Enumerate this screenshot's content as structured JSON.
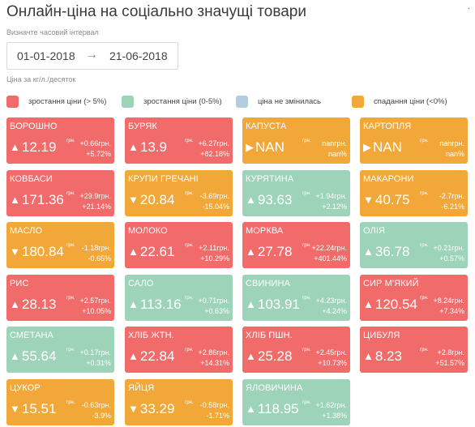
{
  "header": {
    "title": "Онлайн-ціна на соціально значущі товари",
    "corner": "."
  },
  "range": {
    "label": "Визначте часовий інтервал",
    "start": "01-01-2018",
    "arrow": "→",
    "end": "21-06-2018",
    "unit_note": "Ціна за кг/л./десяток"
  },
  "colors": {
    "up_strong": "#f26b6b",
    "up_mild": "#9dd3b8",
    "unchanged": "#b3cde0",
    "down": "#f2a838"
  },
  "legend": [
    {
      "label": "зростання ціни (> 5%)",
      "color": "#f26b6b"
    },
    {
      "label": "зростання ціни (0-5%)",
      "color": "#9dd3b8"
    },
    {
      "label": "ціна не змінилась",
      "color": "#b3cde0"
    },
    {
      "label": "спадання ціни (<0%)",
      "color": "#f2a838"
    }
  ],
  "products": [
    {
      "name": "БОРОШНО",
      "arrow": "▲",
      "price": "12.19",
      "cur": "грн.",
      "change": "+0.66грн.",
      "percent": "+5.72%",
      "color": "#f26b6b"
    },
    {
      "name": "БУРЯК",
      "arrow": "▲",
      "price": "13.9",
      "cur": "грн.",
      "change": "+6.27грн.",
      "percent": "+82.18%",
      "color": "#f26b6b"
    },
    {
      "name": "КАПУСТА",
      "arrow": "▶",
      "price": "NAN",
      "cur": "грн.",
      "change": "nanгрн.",
      "percent": "nan%",
      "color": "#f2a838"
    },
    {
      "name": "КАРТОПЛЯ",
      "arrow": "▶",
      "price": "NAN",
      "cur": "грн.",
      "change": "nanгрн.",
      "percent": "nan%",
      "color": "#f2a838"
    },
    {
      "name": "КОВБАСИ",
      "arrow": "▲",
      "price": "171.36",
      "cur": "грн.",
      "change": "+29.9грн.",
      "percent": "+21.14%",
      "color": "#f26b6b"
    },
    {
      "name": "КРУПИ ГРЕЧАНІ",
      "arrow": "▼",
      "price": "20.84",
      "cur": "грн.",
      "change": "-3.69грн.",
      "percent": "-15.04%",
      "color": "#f2a838"
    },
    {
      "name": "КУРЯТИНА",
      "arrow": "▲",
      "price": "93.63",
      "cur": "грн.",
      "change": "+1.94грн.",
      "percent": "+2.12%",
      "color": "#9dd3b8"
    },
    {
      "name": "МАКАРОНИ",
      "arrow": "▼",
      "price": "40.75",
      "cur": "грн.",
      "change": "-2.7грн.",
      "percent": "-6.21%",
      "color": "#f2a838"
    },
    {
      "name": "МАСЛО",
      "arrow": "▼",
      "price": "180.84",
      "cur": "грн.",
      "change": "-1.18грн.",
      "percent": "-0.65%",
      "color": "#f2a838"
    },
    {
      "name": "МОЛОКО",
      "arrow": "▲",
      "price": "22.61",
      "cur": "грн.",
      "change": "+2.11грн.",
      "percent": "+10.29%",
      "color": "#f26b6b"
    },
    {
      "name": "МОРКВА",
      "arrow": "▲",
      "price": "27.78",
      "cur": "грн.",
      "change": "+22.24грн.",
      "percent": "+401.44%",
      "color": "#f26b6b"
    },
    {
      "name": "ОЛІЯ",
      "arrow": "▲",
      "price": "36.78",
      "cur": "грн.",
      "change": "+0.21грн.",
      "percent": "+0.57%",
      "color": "#9dd3b8"
    },
    {
      "name": "РИС",
      "arrow": "▲",
      "price": "28.13",
      "cur": "грн.",
      "change": "+2.57грн.",
      "percent": "+10.05%",
      "color": "#f26b6b"
    },
    {
      "name": "САЛО",
      "arrow": "▲",
      "price": "113.16",
      "cur": "грн.",
      "change": "+0.71грн.",
      "percent": "+0.63%",
      "color": "#9dd3b8"
    },
    {
      "name": "СВИНИНА",
      "arrow": "▲",
      "price": "103.91",
      "cur": "грн.",
      "change": "+4.23грн.",
      "percent": "+4.24%",
      "color": "#9dd3b8"
    },
    {
      "name": "СИР М'ЯКИЙ",
      "arrow": "▲",
      "price": "120.54",
      "cur": "грн.",
      "change": "+8.24грн.",
      "percent": "+7.34%",
      "color": "#f26b6b"
    },
    {
      "name": "СМЕТАНА",
      "arrow": "▲",
      "price": "55.64",
      "cur": "грн.",
      "change": "+0.17грн.",
      "percent": "+0.31%",
      "color": "#9dd3b8"
    },
    {
      "name": "ХЛІБ ЖТН.",
      "arrow": "▲",
      "price": "22.84",
      "cur": "грн.",
      "change": "+2.86грн.",
      "percent": "+14.31%",
      "color": "#f26b6b"
    },
    {
      "name": "ХЛІБ ПШН.",
      "arrow": "▲",
      "price": "25.28",
      "cur": "грн.",
      "change": "+2.45грн.",
      "percent": "+10.73%",
      "color": "#f26b6b"
    },
    {
      "name": "ЦИБУЛЯ",
      "arrow": "▲",
      "price": "8.23",
      "cur": "грн.",
      "change": "+2.8грн.",
      "percent": "+51.57%",
      "color": "#f26b6b"
    },
    {
      "name": "ЦУКОР",
      "arrow": "▼",
      "price": "15.51",
      "cur": "грн.",
      "change": "-0.63грн.",
      "percent": "-3.9%",
      "color": "#f2a838"
    },
    {
      "name": "ЯЙЦЯ",
      "arrow": "▼",
      "price": "33.29",
      "cur": "грн.",
      "change": "-0.58грн.",
      "percent": "-1.71%",
      "color": "#f2a838"
    },
    {
      "name": "ЯЛОВИЧИНА",
      "arrow": "▲",
      "price": "118.95",
      "cur": "грн.",
      "change": "+1.62грн.",
      "percent": "+1.38%",
      "color": "#9dd3b8"
    }
  ]
}
